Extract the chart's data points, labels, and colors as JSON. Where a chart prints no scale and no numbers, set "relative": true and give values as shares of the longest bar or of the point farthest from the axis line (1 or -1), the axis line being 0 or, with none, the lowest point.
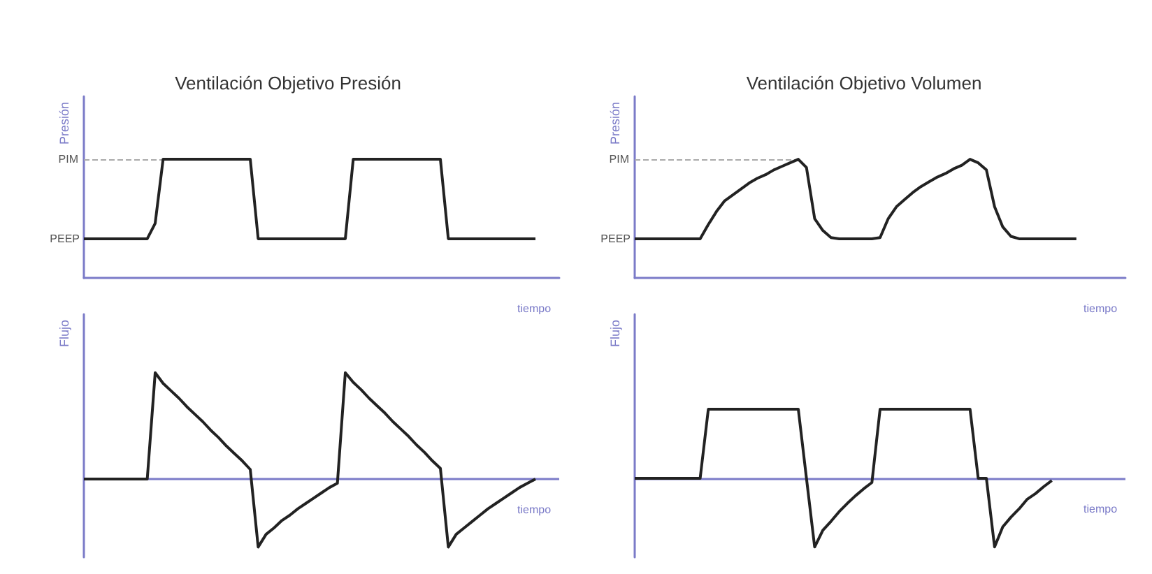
{
  "chart_data": [
    {
      "type": "line",
      "title": "Ventilación Objetivo Presión",
      "xlabel": "tiempo",
      "ylabel": "Presión",
      "relative": true,
      "categories": [
        null,
        null,
        null,
        null,
        null,
        null,
        null,
        null,
        null,
        null,
        null,
        null,
        null,
        null,
        null,
        null,
        null,
        null,
        null,
        null,
        null,
        null,
        null,
        null,
        null,
        null,
        null,
        null,
        null,
        null,
        null,
        null,
        null,
        null,
        null,
        null,
        null,
        null,
        null,
        null,
        null,
        null,
        null,
        null,
        null,
        null,
        null,
        null,
        null,
        null,
        null,
        null,
        null,
        null,
        null,
        null,
        null,
        null,
        null,
        null,
        null
      ],
      "series": [
        {
          "color": "#222222",
          "values": [
            0.33,
            0.33,
            0.33,
            0.33,
            0.33,
            0.33,
            0.33,
            0.33,
            0.33,
            0.46,
            1,
            1,
            1,
            1,
            1,
            1,
            1,
            1,
            1,
            1,
            1,
            1,
            0.33,
            0.33,
            0.33,
            0.33,
            0.33,
            0.33,
            0.33,
            0.33,
            0.33,
            0.33,
            0.33,
            0.33,
            1,
            1,
            1,
            1,
            1,
            1,
            1,
            1,
            1,
            1,
            1,
            1,
            0.33,
            0.33,
            0.33,
            0.33,
            0.33,
            0.33,
            0.33,
            0.33,
            0.33,
            0.33,
            0.33,
            0.33,
            null,
            null,
            null
          ]
        }
      ],
      "ref_lines": [
        {
          "axis": "y",
          "value": 1,
          "label": "PIM",
          "color": "#aaaaaa",
          "line_style": "dashed"
        }
      ],
      "annotations": [
        "PEEP"
      ]
    },
    {
      "type": "line",
      "title": "Ventilación Objetivo Volumen",
      "xlabel": "tiempo",
      "ylabel": "Presión",
      "relative": true,
      "categories": [
        null,
        null,
        null,
        null,
        null,
        null,
        null,
        null,
        null,
        null,
        null,
        null,
        null,
        null,
        null,
        null,
        null,
        null,
        null,
        null,
        null,
        null,
        null,
        null,
        null,
        null,
        null,
        null,
        null,
        null,
        null,
        null,
        null,
        null,
        null,
        null,
        null,
        null,
        null,
        null,
        null,
        null,
        null,
        null,
        null,
        null,
        null,
        null,
        null,
        null,
        null,
        null,
        null,
        null,
        null,
        null,
        null,
        null,
        null,
        null,
        null
      ],
      "series": [
        {
          "color": "#222222",
          "values": [
            0.33,
            0.33,
            0.33,
            0.33,
            0.33,
            0.33,
            0.33,
            0.33,
            0.33,
            0.45,
            0.56,
            0.65,
            0.7,
            0.75,
            0.8,
            0.84,
            0.87,
            0.91,
            0.94,
            0.97,
            1,
            0.93,
            0.5,
            0.4,
            0.34,
            0.33,
            0.33,
            0.33,
            0.33,
            0.33,
            0.34,
            0.5,
            0.6,
            0.66,
            0.72,
            0.77,
            0.81,
            0.85,
            0.88,
            0.92,
            0.95,
            1,
            0.97,
            0.91,
            0.6,
            0.43,
            0.35,
            0.33,
            0.33,
            0.33,
            0.33,
            0.33,
            0.33,
            0.33,
            0.33,
            null,
            null,
            null,
            null,
            null,
            null
          ]
        }
      ],
      "ref_lines": [
        {
          "axis": "y",
          "value": 1,
          "label": "PIM",
          "color": "#aaaaaa",
          "line_style": "dashed"
        }
      ],
      "annotations": [
        "PEEP"
      ]
    },
    {
      "type": "line",
      "xlabel": "tiempo",
      "ylabel": "Flujo",
      "relative": true,
      "categories": [
        null,
        null,
        null,
        null,
        null,
        null,
        null,
        null,
        null,
        null,
        null,
        null,
        null,
        null,
        null,
        null,
        null,
        null,
        null,
        null,
        null,
        null,
        null,
        null,
        null,
        null,
        null,
        null,
        null,
        null,
        null,
        null,
        null,
        null,
        null,
        null,
        null,
        null,
        null,
        null,
        null,
        null,
        null,
        null,
        null,
        null,
        null,
        null,
        null,
        null,
        null,
        null,
        null,
        null,
        null,
        null,
        null,
        null,
        null,
        null,
        null
      ],
      "series": [
        {
          "color": "#222222",
          "values": [
            0,
            0,
            0,
            0,
            0,
            0,
            0,
            0,
            0,
            1,
            0.9,
            0.83,
            0.76,
            0.68,
            0.61,
            0.54,
            0.46,
            0.39,
            0.31,
            0.24,
            0.17,
            0.09,
            -0.64,
            -0.52,
            -0.46,
            -0.39,
            -0.34,
            -0.28,
            -0.23,
            -0.18,
            -0.13,
            -0.08,
            -0.04,
            1,
            0.91,
            0.84,
            0.76,
            0.69,
            0.62,
            0.54,
            0.47,
            0.4,
            0.32,
            0.25,
            0.17,
            0.1,
            -0.64,
            -0.52,
            -0.46,
            -0.4,
            -0.34,
            -0.28,
            -0.23,
            -0.18,
            -0.13,
            -0.08,
            -0.04,
            0,
            null,
            null,
            null
          ]
        }
      ],
      "ref_lines": [
        {
          "axis": "y",
          "value": 0,
          "color": "#7b7bc8"
        }
      ]
    },
    {
      "type": "line",
      "xlabel": "tiempo",
      "ylabel": "Flujo",
      "relative": true,
      "ref_lines": [
        {
          "axis": "y",
          "value": 0,
          "color": "#7b7bc8"
        }
      ],
      "categories": [
        null,
        null,
        null,
        null,
        null,
        null,
        null,
        null,
        null,
        null,
        null,
        null,
        null,
        null,
        null,
        null,
        null,
        null,
        null,
        null,
        null,
        null,
        null,
        null,
        null,
        null,
        null,
        null,
        null,
        null,
        null,
        null,
        null,
        null,
        null,
        null,
        null,
        null,
        null,
        null,
        null,
        null,
        null,
        null,
        null,
        null,
        null,
        null,
        null,
        null,
        null,
        null,
        null,
        null,
        null,
        null,
        null,
        null,
        null,
        null,
        null
      ],
      "series": [
        {
          "color": "#222222",
          "values": [
            0,
            0,
            0,
            0,
            0,
            0,
            0,
            0,
            0,
            1,
            1,
            1,
            1,
            1,
            1,
            1,
            1,
            1,
            1,
            1,
            1,
            0,
            -0.99,
            -0.75,
            -0.62,
            -0.48,
            -0.36,
            -0.25,
            -0.15,
            -0.06,
            1,
            1,
            1,
            1,
            1,
            1,
            1,
            1,
            1,
            1,
            1,
            1,
            0,
            0,
            -0.99,
            -0.7,
            -0.56,
            -0.44,
            -0.3,
            -0.22,
            -0.12,
            -0.03,
            null,
            null,
            null,
            null,
            null,
            null,
            null,
            null,
            null
          ]
        }
      ]
    }
  ]
}
